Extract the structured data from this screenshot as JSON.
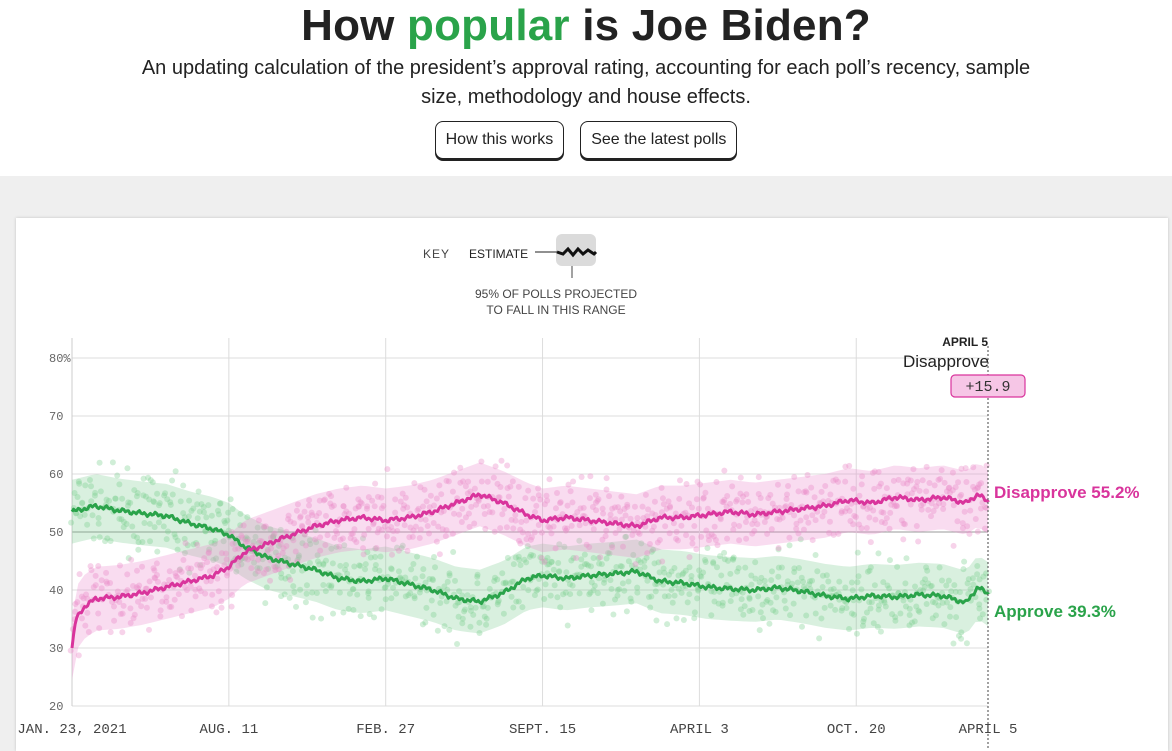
{
  "header": {
    "title_pre": "How ",
    "title_accent": "popular",
    "title_post": " is Joe Biden?",
    "subtitle": "An updating calculation of the president’s approval rating, accounting for each poll’s recency, sample size, methodology and house effects.",
    "buttons": {
      "how": "How this works",
      "polls": "See the latest polls"
    }
  },
  "key": {
    "label": "KEY",
    "estimate": "ESTIMATE",
    "range_line1": "95% OF POLLS PROJECTED",
    "range_line2": "TO FALL IN THIS RANGE"
  },
  "colors": {
    "approve": "#2aa34a",
    "disapprove": "#d9349c",
    "accent": "#2aa34a"
  },
  "chart_data": {
    "type": "line",
    "title": "How popular is Joe Biden?",
    "ylim": [
      20,
      80
    ],
    "y_ticks": [
      20,
      30,
      40,
      50,
      60,
      70,
      80
    ],
    "y_tick_labels": [
      "20",
      "30",
      "40",
      "50",
      "60",
      "70",
      "80%"
    ],
    "x_ticks": [
      0,
      200,
      400,
      600,
      800,
      1000,
      1168
    ],
    "x_tick_labels": [
      "JAN. 23, 2021",
      "AUG. 11",
      "FEB. 27",
      "SEPT. 15",
      "APRIL 3",
      "OCT. 20",
      "APRIL 5"
    ],
    "x_range_days": [
      0,
      1168
    ],
    "current": {
      "date_label": "APRIL 5",
      "leader": "Disapprove",
      "margin": "+15.9",
      "approve_label": "Approve 39.3%",
      "disapprove_label": "Disapprove 55.2%"
    },
    "series": [
      {
        "name": "Approve",
        "x": [
          0,
          30,
          60,
          90,
          120,
          150,
          180,
          200,
          220,
          250,
          280,
          310,
          340,
          370,
          400,
          430,
          460,
          490,
          520,
          550,
          580,
          600,
          630,
          660,
          690,
          720,
          750,
          780,
          810,
          840,
          870,
          900,
          930,
          960,
          990,
          1020,
          1050,
          1080,
          1110,
          1140,
          1155,
          1168
        ],
        "values": [
          53.5,
          54.5,
          53.7,
          53.2,
          52.8,
          51.5,
          50.5,
          49.5,
          47.5,
          45.5,
          44.5,
          43.5,
          42.0,
          41.5,
          42.0,
          41.0,
          40.0,
          38.5,
          38.0,
          39.5,
          42.0,
          42.5,
          42.0,
          42.5,
          42.8,
          43.2,
          41.5,
          41.2,
          40.5,
          40.2,
          40.0,
          40.4,
          39.8,
          39.0,
          38.5,
          39.0,
          38.8,
          39.2,
          39.0,
          37.8,
          40.5,
          39.3
        ]
      },
      {
        "name": "Disapprove",
        "x": [
          0,
          5,
          15,
          30,
          60,
          90,
          120,
          150,
          180,
          200,
          220,
          250,
          280,
          310,
          340,
          370,
          400,
          430,
          460,
          490,
          520,
          550,
          580,
          600,
          630,
          660,
          690,
          720,
          750,
          780,
          810,
          840,
          870,
          900,
          930,
          960,
          990,
          1020,
          1050,
          1080,
          1110,
          1140,
          1155,
          1168
        ],
        "values": [
          30.0,
          35.0,
          37.0,
          38.5,
          38.8,
          39.5,
          40.5,
          41.5,
          42.5,
          44.0,
          46.5,
          48.0,
          49.5,
          51.0,
          52.0,
          52.5,
          52.0,
          52.5,
          53.5,
          55.0,
          56.5,
          55.0,
          53.0,
          52.0,
          52.5,
          52.0,
          51.5,
          51.0,
          52.5,
          52.5,
          53.0,
          53.5,
          53.0,
          53.5,
          54.0,
          54.5,
          55.5,
          55.0,
          56.0,
          55.5,
          56.0,
          55.0,
          56.5,
          55.2
        ]
      }
    ]
  }
}
